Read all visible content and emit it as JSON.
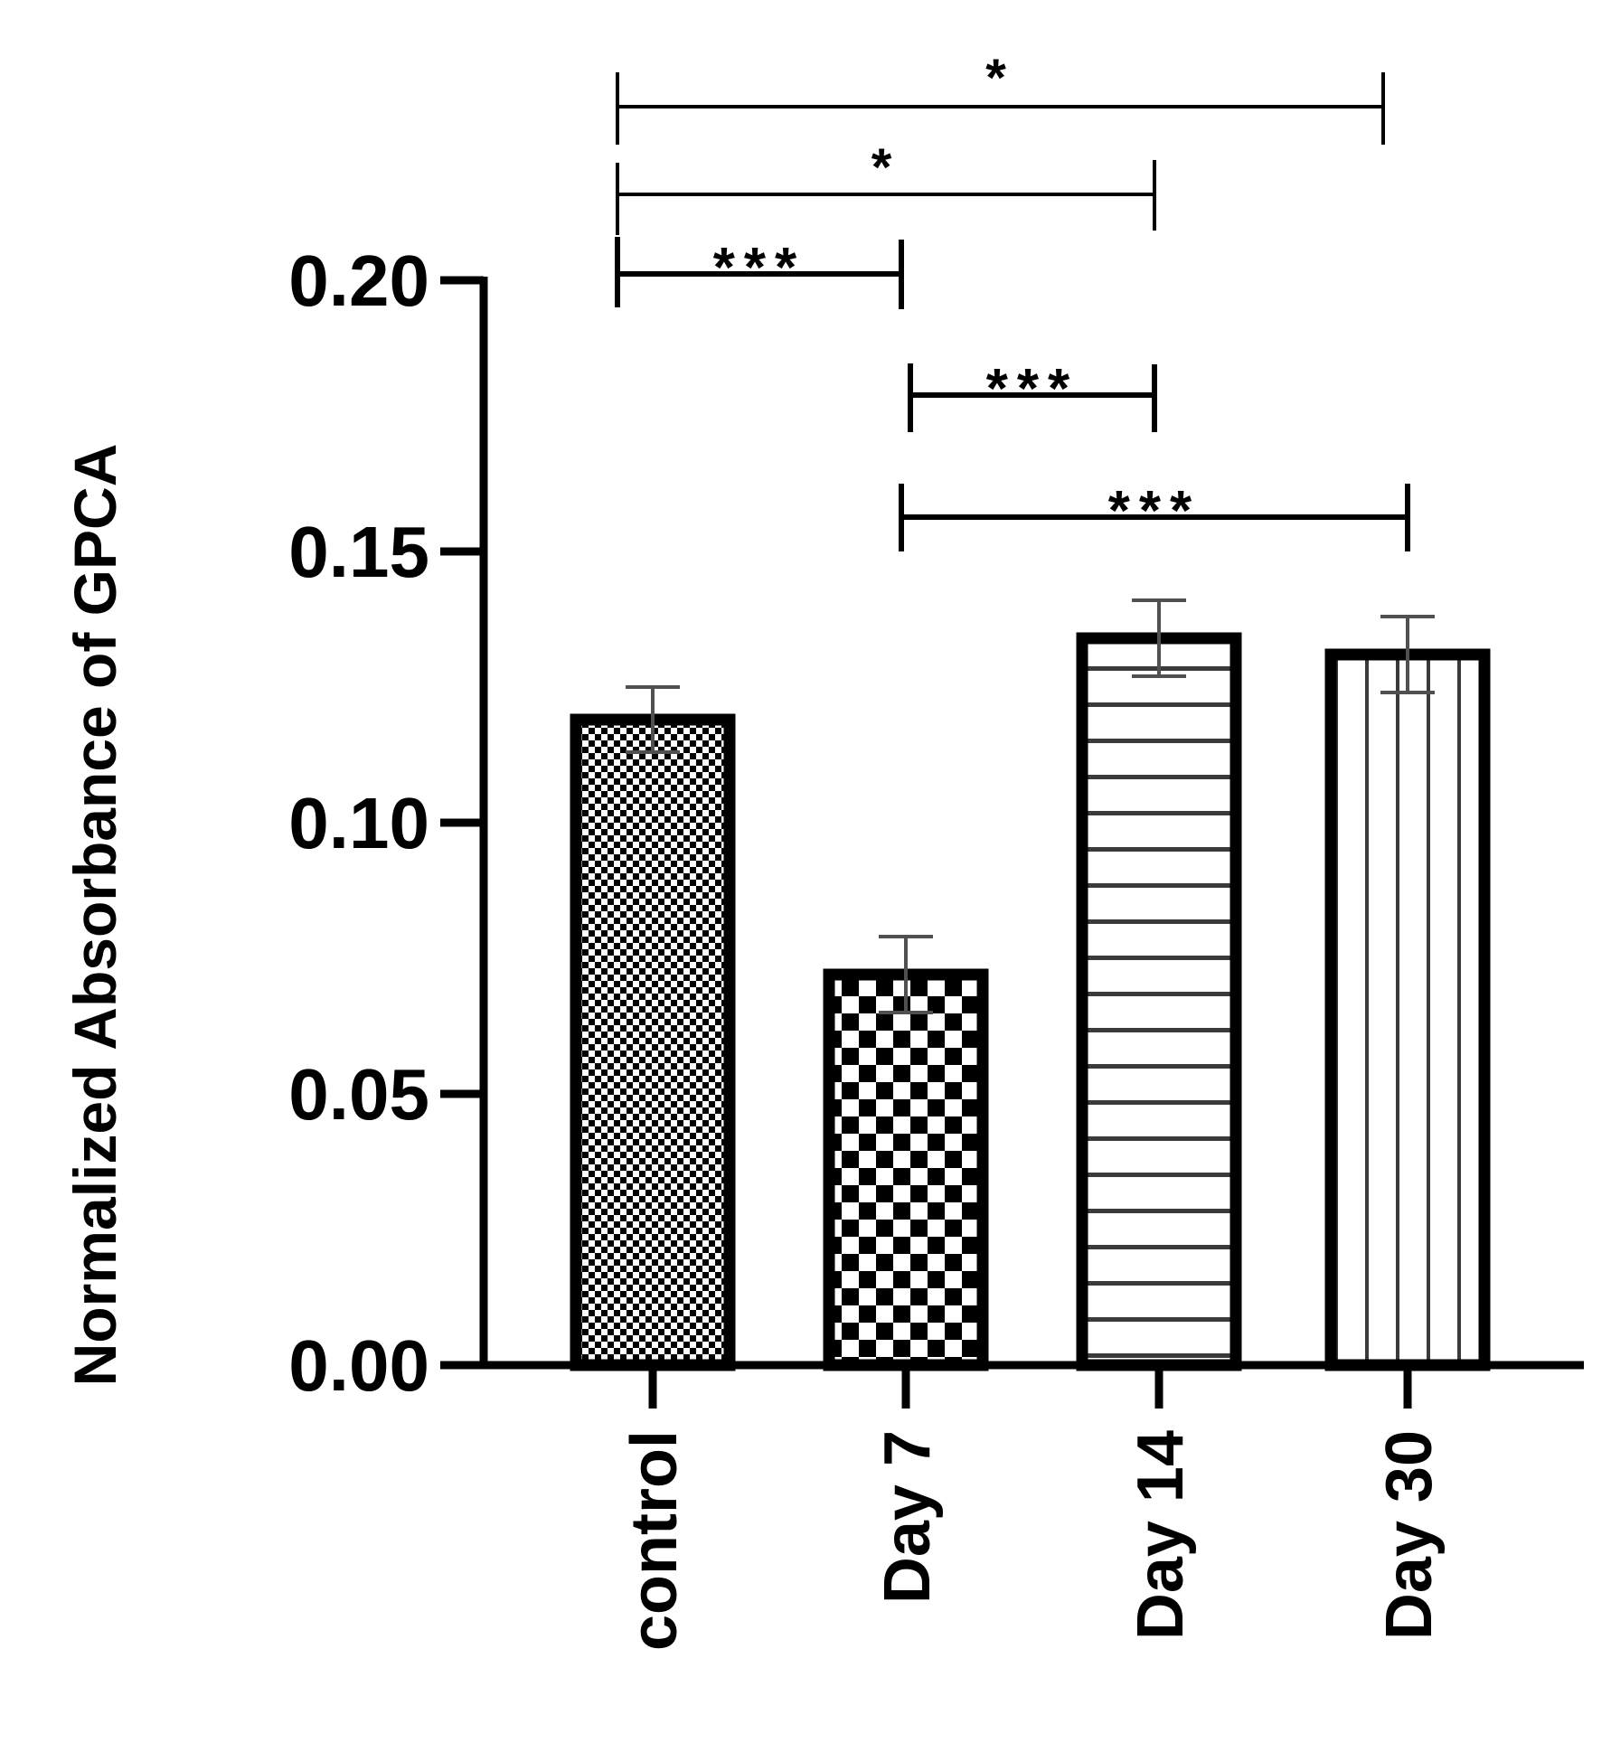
{
  "chart_data": {
    "type": "bar",
    "title": "",
    "xlabel": "",
    "ylabel": "Normalized Absorbance of GPCA",
    "ylim": [
      0,
      0.2
    ],
    "yticks": [
      "0.00",
      "0.05",
      "0.10",
      "0.15",
      "0.20"
    ],
    "grid": false,
    "categories": [
      "control",
      "Day 7",
      "Day 14",
      "Day 30"
    ],
    "values": [
      0.119,
      0.072,
      0.134,
      0.131
    ],
    "errors": [
      0.006,
      0.007,
      0.007,
      0.007
    ],
    "patterns": [
      "fine-checker",
      "coarse-checker",
      "horizontal-stripes",
      "vertical-stripes"
    ],
    "significance": [
      {
        "from": "control",
        "to": "Day 30",
        "label": "*"
      },
      {
        "from": "control",
        "to": "Day 14",
        "label": "*"
      },
      {
        "from": "control",
        "to": "Day 7",
        "label": "***"
      },
      {
        "from": "Day 7",
        "to": "Day 14",
        "label": "***"
      },
      {
        "from": "Day 7",
        "to": "Day 30",
        "label": "***"
      }
    ]
  }
}
